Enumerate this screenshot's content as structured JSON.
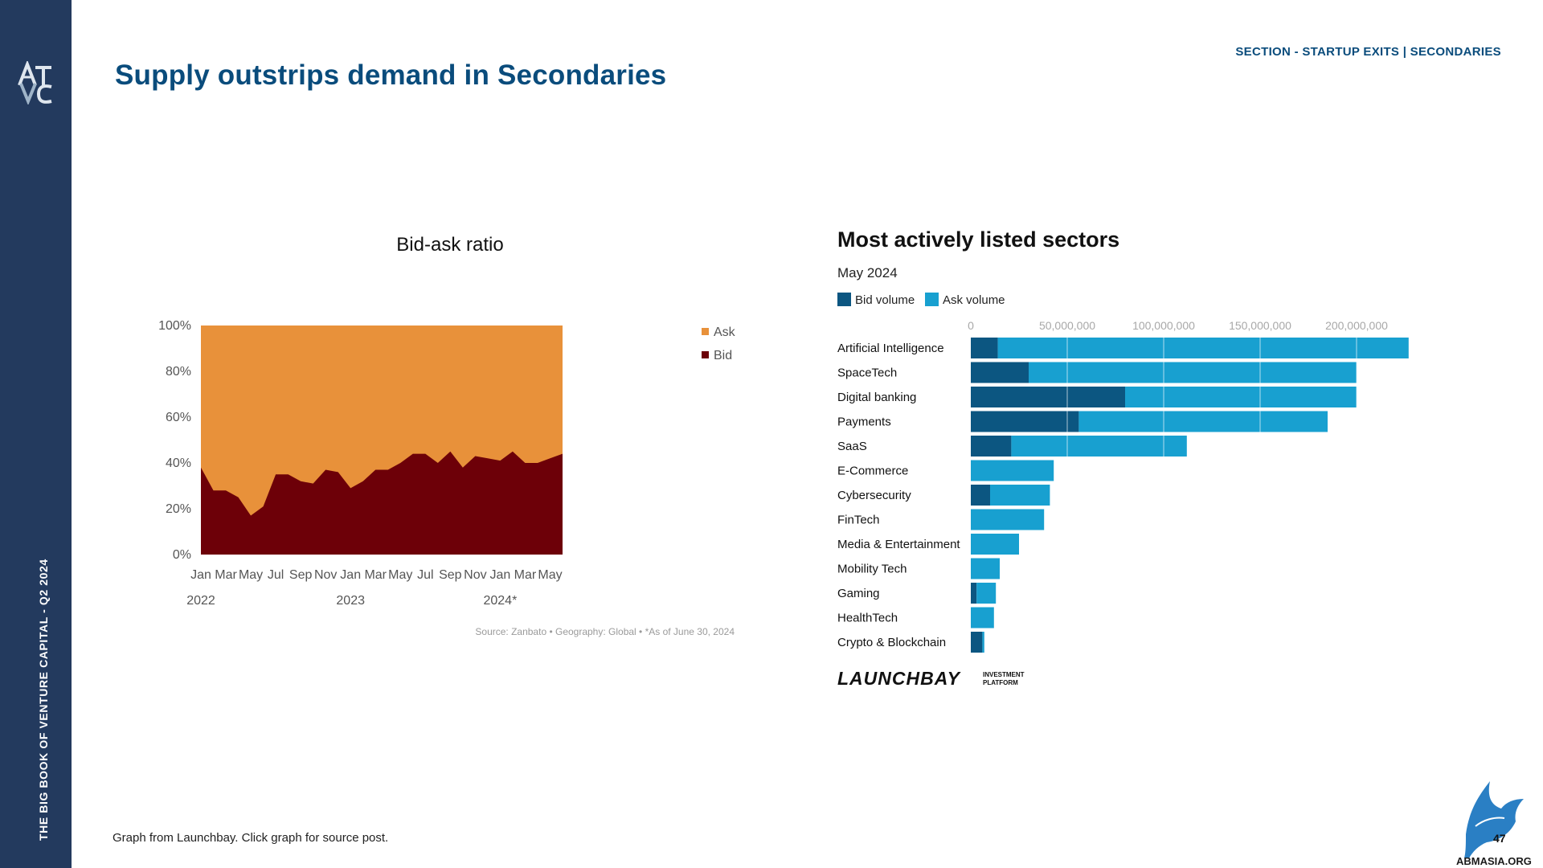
{
  "header": {
    "title": "Supply outstrips demand in Secondaries",
    "section": "SECTION - STARTUP EXITS | SECONDARIES"
  },
  "sidebar": {
    "vertical_text": "THE BIG BOOK OF VENTURE CAPITAL - Q2 2024",
    "logo_text": "ATVC"
  },
  "footer": {
    "note": "Graph from Launchbay. Click graph for source post.",
    "watermark": "ABMASIA.ORG",
    "page_number": "47"
  },
  "colors": {
    "navy": "#233a5e",
    "title_blue": "#0a4c7c",
    "ask_orange": "#e8913a",
    "bid_maroon": "#6d0008",
    "bid_volume": "#0c5681",
    "ask_volume": "#18a0d0"
  },
  "chart_data": [
    {
      "type": "area",
      "title": "Bid-ask ratio",
      "stacked": true,
      "ylim": [
        0,
        100
      ],
      "y_ticks": [
        "0%",
        "20%",
        "40%",
        "60%",
        "80%",
        "100%"
      ],
      "x_tick_labels": [
        "Jan",
        "Mar",
        "May",
        "Jul",
        "Sep",
        "Nov",
        "Jan",
        "Mar",
        "May",
        "Jul",
        "Sep",
        "Nov",
        "Jan",
        "Mar",
        "May"
      ],
      "year_labels": [
        "2022",
        "2023",
        "2024*"
      ],
      "x": [
        "2022-01",
        "2022-02",
        "2022-03",
        "2022-04",
        "2022-05",
        "2022-06",
        "2022-07",
        "2022-08",
        "2022-09",
        "2022-10",
        "2022-11",
        "2022-12",
        "2023-01",
        "2023-02",
        "2023-03",
        "2023-04",
        "2023-05",
        "2023-06",
        "2023-07",
        "2023-08",
        "2023-09",
        "2023-10",
        "2023-11",
        "2023-12",
        "2024-01",
        "2024-02",
        "2024-03",
        "2024-04",
        "2024-05",
        "2024-06"
      ],
      "series": [
        {
          "name": "Bid",
          "values": [
            38,
            28,
            28,
            25,
            17,
            21,
            35,
            35,
            32,
            31,
            37,
            36,
            29,
            32,
            37,
            37,
            40,
            44,
            44,
            40,
            45,
            38,
            43,
            42,
            41,
            45,
            40,
            40,
            42,
            44
          ]
        },
        {
          "name": "Ask",
          "values": [
            62,
            72,
            72,
            75,
            83,
            79,
            65,
            65,
            68,
            69,
            63,
            64,
            71,
            68,
            63,
            63,
            60,
            56,
            56,
            60,
            55,
            62,
            57,
            58,
            59,
            55,
            60,
            60,
            58,
            56
          ]
        }
      ],
      "legend": [
        "Ask",
        "Bid"
      ],
      "legend_position": "right",
      "source_note": "Source: Zanbato  •  Geography: Global  •  *As of June 30, 2024"
    },
    {
      "type": "bar",
      "orientation": "horizontal",
      "stacked": true,
      "title": "Most actively listed sectors",
      "subtitle": "May 2024",
      "x_ticks": [
        "0",
        "50,000,000",
        "100,000,000",
        "150,000,000",
        "200,000,000"
      ],
      "xlim": [
        0,
        230000000
      ],
      "categories": [
        "Artificial Intelligence",
        "SpaceTech",
        "Digital banking",
        "Payments",
        "SaaS",
        "E-Commerce",
        "Cybersecurity",
        "FinTech",
        "Media & Entertainment",
        "Mobility Tech",
        "Gaming",
        "HealthTech",
        "Crypto & Blockchain"
      ],
      "series": [
        {
          "name": "Bid volume",
          "values": [
            14000000,
            30000000,
            80000000,
            56000000,
            21000000,
            0,
            10000000,
            0,
            0,
            0,
            3000000,
            0,
            6000000
          ]
        },
        {
          "name": "Ask volume",
          "values": [
            213000000,
            170000000,
            120000000,
            129000000,
            91000000,
            43000000,
            31000000,
            38000000,
            25000000,
            15000000,
            10000000,
            12000000,
            1000000
          ]
        }
      ],
      "legend_position": "top-left",
      "brand": "LAUNCHBAY",
      "brand_sub": [
        "INVESTMENT",
        "PLATFORM"
      ]
    }
  ]
}
